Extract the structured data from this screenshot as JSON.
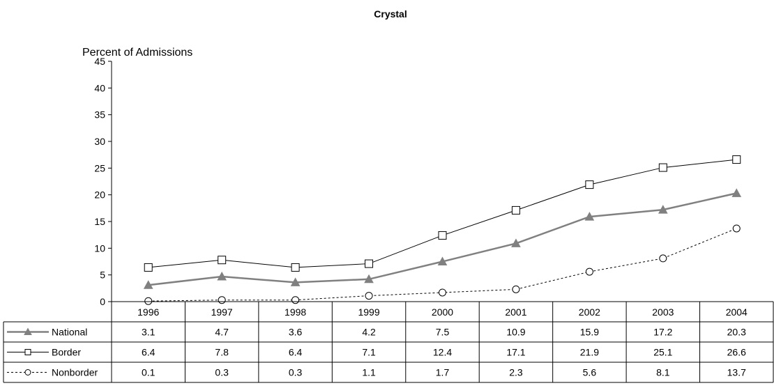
{
  "chart_data": {
    "type": "line",
    "title": "Crystal",
    "ylabel": "Percent of Admissions",
    "xlabel": "",
    "ylim": [
      0,
      45
    ],
    "yticks": [
      0,
      5,
      10,
      15,
      20,
      25,
      30,
      35,
      40,
      45
    ],
    "categories": [
      "1996",
      "1997",
      "1998",
      "1999",
      "2000",
      "2001",
      "2002",
      "2003",
      "2004"
    ],
    "grid": false,
    "legend": "data-table-left",
    "series": [
      {
        "name": "National",
        "values": [
          3.1,
          4.7,
          3.6,
          4.2,
          7.5,
          10.9,
          15.9,
          17.2,
          20.3
        ],
        "color": "#808080",
        "marker": "triangle-filled",
        "line_style": "solid-thick"
      },
      {
        "name": "Border",
        "values": [
          6.4,
          7.8,
          6.4,
          7.1,
          12.4,
          17.1,
          21.9,
          25.1,
          26.6
        ],
        "color": "#000000",
        "marker": "square-open",
        "line_style": "solid-thin"
      },
      {
        "name": "Nonborder",
        "values": [
          0.1,
          0.3,
          0.3,
          1.1,
          1.7,
          2.3,
          5.6,
          8.1,
          13.7
        ],
        "color": "#000000",
        "marker": "circle-open",
        "line_style": "dotted"
      }
    ]
  }
}
